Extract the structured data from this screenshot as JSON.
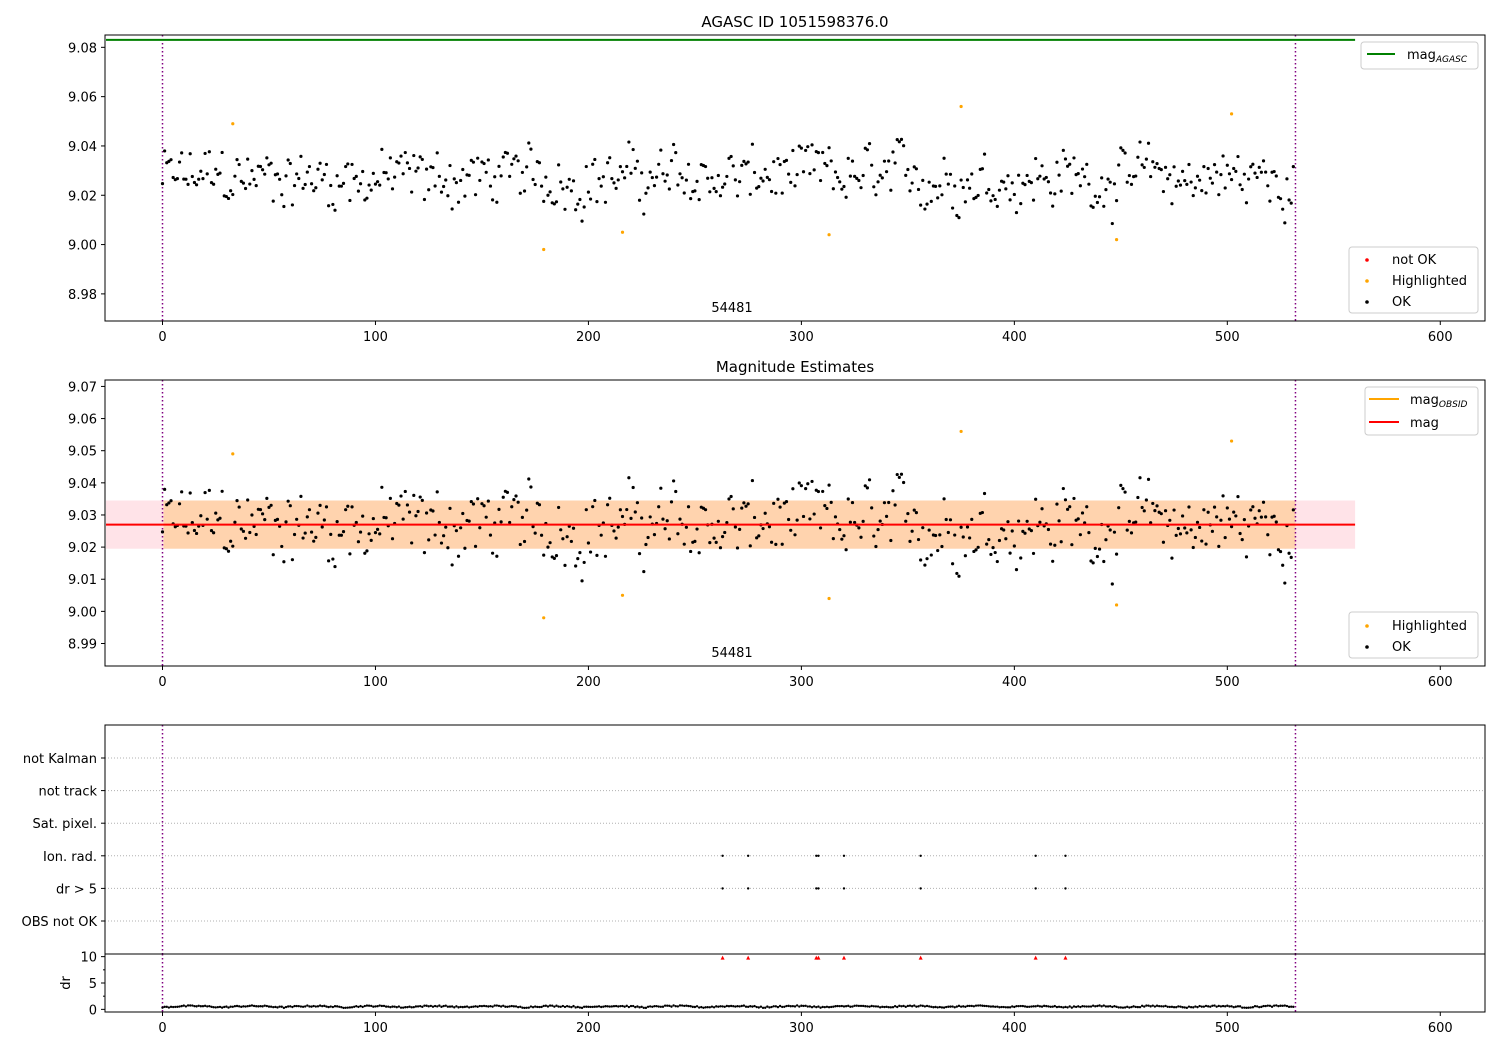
{
  "chart_data": [
    {
      "type": "scatter",
      "title": "AGASC ID 1051598376.0",
      "xlim": [
        -27,
        621
      ],
      "ylim": [
        8.969,
        9.085
      ],
      "xticks": [
        "0",
        "100",
        "200",
        "300",
        "400",
        "500",
        "600"
      ],
      "yticks": [
        "8.98",
        "9.00",
        "9.02",
        "9.04",
        "9.06",
        "9.08"
      ],
      "annotation": "54481",
      "vlines": [
        0,
        532
      ],
      "lines": [
        {
          "name": "mag_AGASC",
          "y": 9.083,
          "x_range": [
            -27,
            560
          ],
          "color": "#008000"
        }
      ],
      "legend_top": {
        "label": "mag",
        "sub": "AGASC",
        "color": "#008000",
        "placement": "upper right"
      },
      "legend_bottom": [
        {
          "label": "not OK",
          "color": "#ff0000"
        },
        {
          "label": "Highlighted",
          "color": "#ffa500"
        },
        {
          "label": "OK",
          "color": "#000000"
        }
      ],
      "series": [
        {
          "name": "Highlighted",
          "color": "#ffa500",
          "x": [
            33,
            179,
            216,
            313,
            375,
            448,
            502
          ],
          "y": [
            9.049,
            8.998,
            9.005,
            9.004,
            9.056,
            9.002,
            9.053
          ]
        },
        {
          "name": "OK",
          "color": "#000000",
          "n": 532,
          "x_range": [
            0,
            532
          ],
          "y_range": [
            9.006,
            9.047
          ]
        }
      ]
    },
    {
      "type": "scatter",
      "title": "Magnitude Estimates",
      "xlim": [
        -27,
        621
      ],
      "ylim": [
        8.983,
        9.072
      ],
      "xticks": [
        "0",
        "100",
        "200",
        "300",
        "400",
        "500",
        "600"
      ],
      "yticks": [
        "8.99",
        "9.00",
        "9.01",
        "9.02",
        "9.03",
        "9.04",
        "9.05",
        "9.06",
        "9.07"
      ],
      "annotation": "54481",
      "vlines": [
        0,
        532
      ],
      "lines": [
        {
          "name": "mag",
          "y": 9.027,
          "x_range": [
            -27,
            560
          ],
          "color": "#ff0000"
        }
      ],
      "bands": [
        {
          "y": [
            9.0195,
            9.0345
          ],
          "x_range": [
            -27,
            560
          ],
          "color": "#ffc0cb"
        },
        {
          "y": [
            9.0195,
            9.0345
          ],
          "x_range": [
            0,
            532
          ],
          "color": "#ffa500"
        }
      ],
      "legend_top": [
        {
          "label": "mag",
          "sub": "OBSID",
          "color": "#ffa500"
        },
        {
          "label": "mag",
          "sub": "",
          "color": "#ff0000"
        }
      ],
      "legend_bottom": [
        {
          "label": "Highlighted",
          "color": "#ffa500"
        },
        {
          "label": "OK",
          "color": "#000000"
        }
      ],
      "series": [
        {
          "name": "Highlighted",
          "color": "#ffa500",
          "x": [
            33,
            179,
            216,
            313,
            375,
            448,
            502
          ],
          "y": [
            9.049,
            8.998,
            9.005,
            9.004,
            9.056,
            9.002,
            9.053
          ]
        },
        {
          "name": "OK",
          "color": "#000000",
          "n": 532,
          "x_range": [
            0,
            532
          ],
          "y_range": [
            9.006,
            9.047
          ]
        }
      ]
    },
    {
      "type": "scatter",
      "title": "",
      "xlim": [
        -27,
        621
      ],
      "xticks": [
        "0",
        "100",
        "200",
        "300",
        "400",
        "500",
        "600"
      ],
      "vlines": [
        0,
        532
      ],
      "flag_rows": [
        "not Kalman",
        "not track",
        "Sat. pixel.",
        "Ion. rad.",
        "dr > 5",
        "OBS not OK"
      ],
      "flags": [
        {
          "row": "Ion. rad.",
          "x": [
            263,
            275,
            307,
            308,
            320,
            356,
            410,
            424
          ]
        },
        {
          "row": "dr > 5",
          "x": [
            263,
            275,
            307,
            308,
            320,
            356,
            410,
            424
          ]
        }
      ],
      "dr": {
        "ylabel": "dr",
        "ylim": [
          -0.5,
          10.5
        ],
        "yticks": [
          "0",
          "5",
          "10"
        ],
        "clipped_x": [
          263,
          275,
          307,
          308,
          320,
          356,
          410,
          424
        ],
        "clipped_color": "#ff0000",
        "n": 532,
        "y_range": [
          0,
          1
        ]
      }
    }
  ]
}
